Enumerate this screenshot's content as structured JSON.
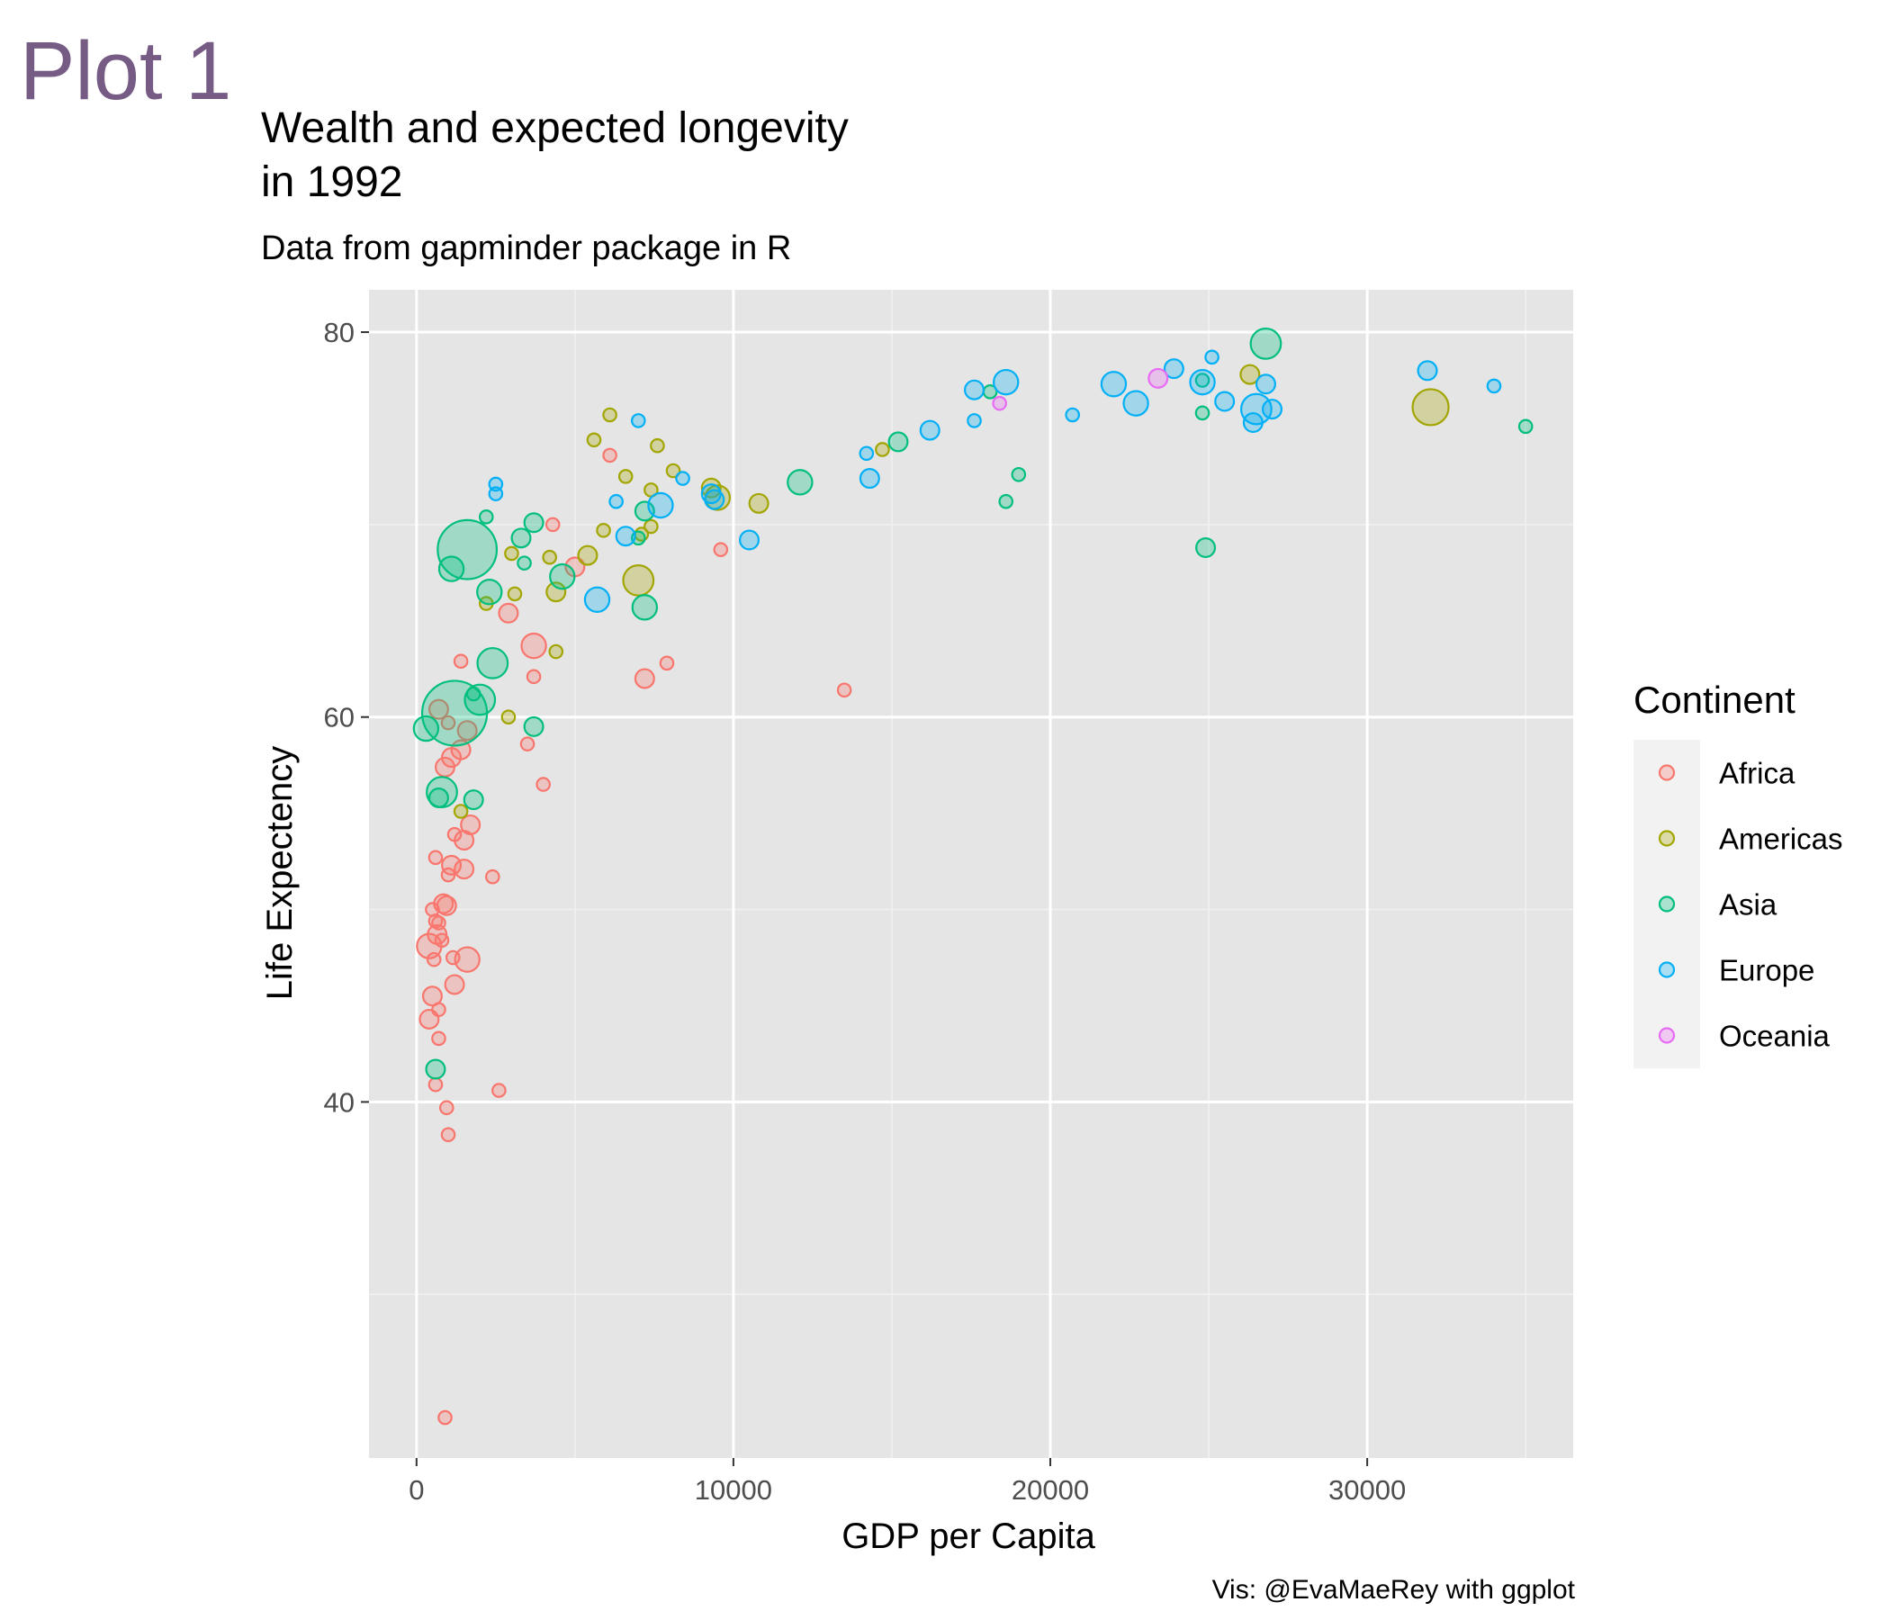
{
  "page_label": "Plot 1",
  "chart_data": {
    "type": "scatter",
    "title": "Wealth and expected longevity\n in 1992",
    "subtitle": "Data from gapminder package in R",
    "caption": "Vis: @EvaMaeRey with ggplot",
    "xlabel": "GDP per Capita",
    "ylabel": "Life Expectency",
    "xlim": [
      -1500,
      36500
    ],
    "ylim": [
      21.5,
      82.2
    ],
    "x_ticks": [
      0,
      10000,
      20000,
      30000
    ],
    "x_minor_ticks": [
      5000,
      15000,
      25000,
      35000
    ],
    "y_ticks": [
      40,
      60,
      80
    ],
    "y_minor_ticks": [
      30,
      50,
      70
    ],
    "grid": true,
    "legend": {
      "title": "Continent",
      "placement": "right",
      "entries": [
        {
          "name": "Africa",
          "color": "#F8766D"
        },
        {
          "name": "Americas",
          "color": "#A3A500"
        },
        {
          "name": "Asia",
          "color": "#00BF7D"
        },
        {
          "name": "Europe",
          "color": "#00B0F6"
        },
        {
          "name": "Oceania",
          "color": "#E76BF3"
        }
      ]
    },
    "size_note": "point size encodes population",
    "series": [
      {
        "name": "Africa",
        "color": "#F8766D",
        "points": [
          [
            900,
            23.6,
            1
          ],
          [
            2600,
            40.6,
            1
          ],
          [
            950,
            39.7,
            1
          ],
          [
            1000,
            38.3,
            1
          ],
          [
            600,
            40.9,
            1
          ],
          [
            700,
            43.3,
            1
          ],
          [
            500,
            45.5,
            2
          ],
          [
            400,
            44.3,
            2
          ],
          [
            700,
            44.8,
            1
          ],
          [
            1150,
            47.5,
            1
          ],
          [
            1600,
            47.4,
            3
          ],
          [
            1200,
            46.1,
            2
          ],
          [
            400,
            48.1,
            3
          ],
          [
            550,
            47.4,
            1
          ],
          [
            650,
            48.7,
            2
          ],
          [
            800,
            48.4,
            1
          ],
          [
            600,
            49.4,
            1
          ],
          [
            700,
            49.3,
            1
          ],
          [
            500,
            50.0,
            1
          ],
          [
            850,
            50.3,
            2
          ],
          [
            950,
            50.2,
            2
          ],
          [
            1000,
            51.8,
            1
          ],
          [
            1100,
            52.3,
            2
          ],
          [
            1500,
            52.1,
            2
          ],
          [
            600,
            52.7,
            1
          ],
          [
            2400,
            51.7,
            1
          ],
          [
            1200,
            53.9,
            1
          ],
          [
            1500,
            53.6,
            2
          ],
          [
            1700,
            54.4,
            2
          ],
          [
            900,
            57.4,
            2
          ],
          [
            1100,
            57.9,
            2
          ],
          [
            1400,
            58.3,
            2
          ],
          [
            1600,
            59.3,
            2
          ],
          [
            1000,
            59.7,
            1
          ],
          [
            700,
            60.4,
            2
          ],
          [
            3500,
            58.6,
            1
          ],
          [
            4000,
            56.5,
            1
          ],
          [
            3700,
            62.1,
            1
          ],
          [
            1400,
            62.9,
            1
          ],
          [
            3700,
            63.7,
            3
          ],
          [
            2900,
            65.4,
            2
          ],
          [
            5000,
            67.8,
            2
          ],
          [
            4300,
            70.0,
            1
          ],
          [
            6100,
            73.6,
            1
          ],
          [
            9600,
            68.7,
            1
          ],
          [
            7200,
            62.0,
            2
          ],
          [
            7900,
            62.8,
            1
          ],
          [
            13500,
            61.4,
            1
          ]
        ]
      },
      {
        "name": "Americas",
        "color": "#A3A500",
        "points": [
          [
            6100,
            75.7,
            1
          ],
          [
            5600,
            74.4,
            1
          ],
          [
            7600,
            74.1,
            1
          ],
          [
            6600,
            72.5,
            1
          ],
          [
            8100,
            72.8,
            1
          ],
          [
            7400,
            71.8,
            1
          ],
          [
            9300,
            71.9,
            2
          ],
          [
            9500,
            71.4,
            3
          ],
          [
            10800,
            71.1,
            2
          ],
          [
            5900,
            69.7,
            1
          ],
          [
            7100,
            69.5,
            1
          ],
          [
            7400,
            69.9,
            1
          ],
          [
            3000,
            68.5,
            1
          ],
          [
            4200,
            68.3,
            1
          ],
          [
            5400,
            68.4,
            2
          ],
          [
            7000,
            67.1,
            4
          ],
          [
            2200,
            65.9,
            1
          ],
          [
            3100,
            66.4,
            1
          ],
          [
            4400,
            66.5,
            2
          ],
          [
            4400,
            63.4,
            1
          ],
          [
            2900,
            60.0,
            1
          ],
          [
            1400,
            55.1,
            1
          ],
          [
            14700,
            73.9,
            1
          ],
          [
            26300,
            77.8,
            2
          ],
          [
            32000,
            76.1,
            5
          ]
        ]
      },
      {
        "name": "Asia",
        "color": "#00BF7D",
        "points": [
          [
            1600,
            68.7,
            9
          ],
          [
            1100,
            67.7,
            3
          ],
          [
            2200,
            70.4,
            1
          ],
          [
            3300,
            69.3,
            2
          ],
          [
            3700,
            70.1,
            2
          ],
          [
            3400,
            68.0,
            1
          ],
          [
            2300,
            66.5,
            3
          ],
          [
            4600,
            67.3,
            3
          ],
          [
            7000,
            69.3,
            1
          ],
          [
            7200,
            70.7,
            2
          ],
          [
            7200,
            65.7,
            3
          ],
          [
            12100,
            72.2,
            3
          ],
          [
            15200,
            74.3,
            2
          ],
          [
            18100,
            76.9,
            1
          ],
          [
            19000,
            72.6,
            1
          ],
          [
            18600,
            71.2,
            1
          ],
          [
            24900,
            68.8,
            2
          ],
          [
            24800,
            75.8,
            1
          ],
          [
            26800,
            79.4,
            4
          ],
          [
            35000,
            75.1,
            1
          ],
          [
            2400,
            62.8,
            4
          ],
          [
            1200,
            60.2,
            10
          ],
          [
            1800,
            61.2,
            1
          ],
          [
            2000,
            60.9,
            4
          ],
          [
            300,
            59.4,
            3
          ],
          [
            3700,
            59.5,
            2
          ],
          [
            800,
            56.1,
            4
          ],
          [
            700,
            55.8,
            2
          ],
          [
            1800,
            55.7,
            2
          ],
          [
            600,
            41.7,
            2
          ],
          [
            24800,
            77.5,
            1
          ]
        ]
      },
      {
        "name": "Europe",
        "color": "#00B0F6",
        "points": [
          [
            2500,
            72.1,
            1
          ],
          [
            2500,
            71.6,
            1
          ],
          [
            6300,
            71.2,
            1
          ],
          [
            7000,
            75.4,
            1
          ],
          [
            8400,
            72.4,
            1
          ],
          [
            7700,
            71.0,
            3
          ],
          [
            9300,
            71.6,
            2
          ],
          [
            9400,
            71.3,
            2
          ],
          [
            6600,
            69.4,
            2
          ],
          [
            5700,
            66.1,
            3
          ],
          [
            10500,
            69.2,
            2
          ],
          [
            14200,
            73.7,
            1
          ],
          [
            14300,
            72.4,
            2
          ],
          [
            16200,
            74.9,
            2
          ],
          [
            17600,
            77.0,
            2
          ],
          [
            17600,
            75.4,
            1
          ],
          [
            18600,
            77.4,
            3
          ],
          [
            20700,
            75.7,
            1
          ],
          [
            22000,
            77.3,
            3
          ],
          [
            22700,
            76.3,
            3
          ],
          [
            23900,
            78.1,
            2
          ],
          [
            24800,
            77.4,
            3
          ],
          [
            25100,
            78.7,
            1
          ],
          [
            25500,
            76.4,
            2
          ],
          [
            26400,
            75.3,
            2
          ],
          [
            26500,
            76.0,
            4
          ],
          [
            26800,
            77.3,
            2
          ],
          [
            27000,
            76.0,
            2
          ],
          [
            31900,
            78.0,
            2
          ],
          [
            34000,
            77.2,
            1
          ]
        ]
      },
      {
        "name": "Oceania",
        "color": "#E76BF3",
        "points": [
          [
            18400,
            76.3,
            1
          ],
          [
            23400,
            77.6,
            2
          ]
        ]
      }
    ]
  }
}
